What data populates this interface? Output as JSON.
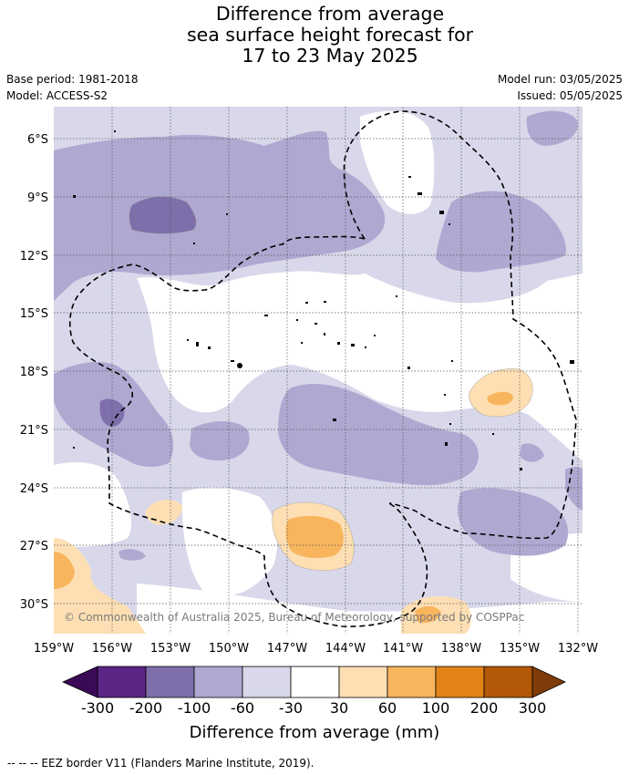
{
  "title": {
    "line1": "Difference from average",
    "line2": "sea surface height forecast for",
    "line3": "17 to 23 May 2025"
  },
  "meta": {
    "base_period": "Base period: 1981-2018",
    "model": "Model: ACCESS-S2",
    "model_run": "Model run: 03/05/2025",
    "issued": "Issued: 05/05/2025"
  },
  "map": {
    "lat_labels": [
      "6°S",
      "9°S",
      "12°S",
      "15°S",
      "18°S",
      "21°S",
      "24°S",
      "27°S",
      "30°S"
    ],
    "lon_labels": [
      "159°W",
      "156°W",
      "153°W",
      "150°W",
      "147°W",
      "144°W",
      "141°W",
      "138°W",
      "135°W",
      "132°W"
    ],
    "copyright": "© Commonwealth of Australia 2025, Bureau of Meteorology, supported by COSPPac"
  },
  "legend": {
    "title": "Difference from average (mm)",
    "tick_labels": [
      "-300",
      "-200",
      "-100",
      "-60",
      "-30",
      "30",
      "60",
      "100",
      "200",
      "300"
    ],
    "colors": {
      "below_-300": "#3a0a57",
      "-300_-200": "#5a2584",
      "-200_-100": "#7e6fab",
      "-100_-60": "#afa9d1",
      "-60_-30": "#d8d8ea",
      "-30_30": "#ffffff",
      "30_60": "#fddfb3",
      "60_100": "#f9b55e",
      "100_200": "#e38317",
      "200_300": "#b35708",
      "above_300": "#7f3b08"
    }
  },
  "footnote": "--  --  -- EEZ border V11 (Flanders Marine Institute, 2019)."
}
